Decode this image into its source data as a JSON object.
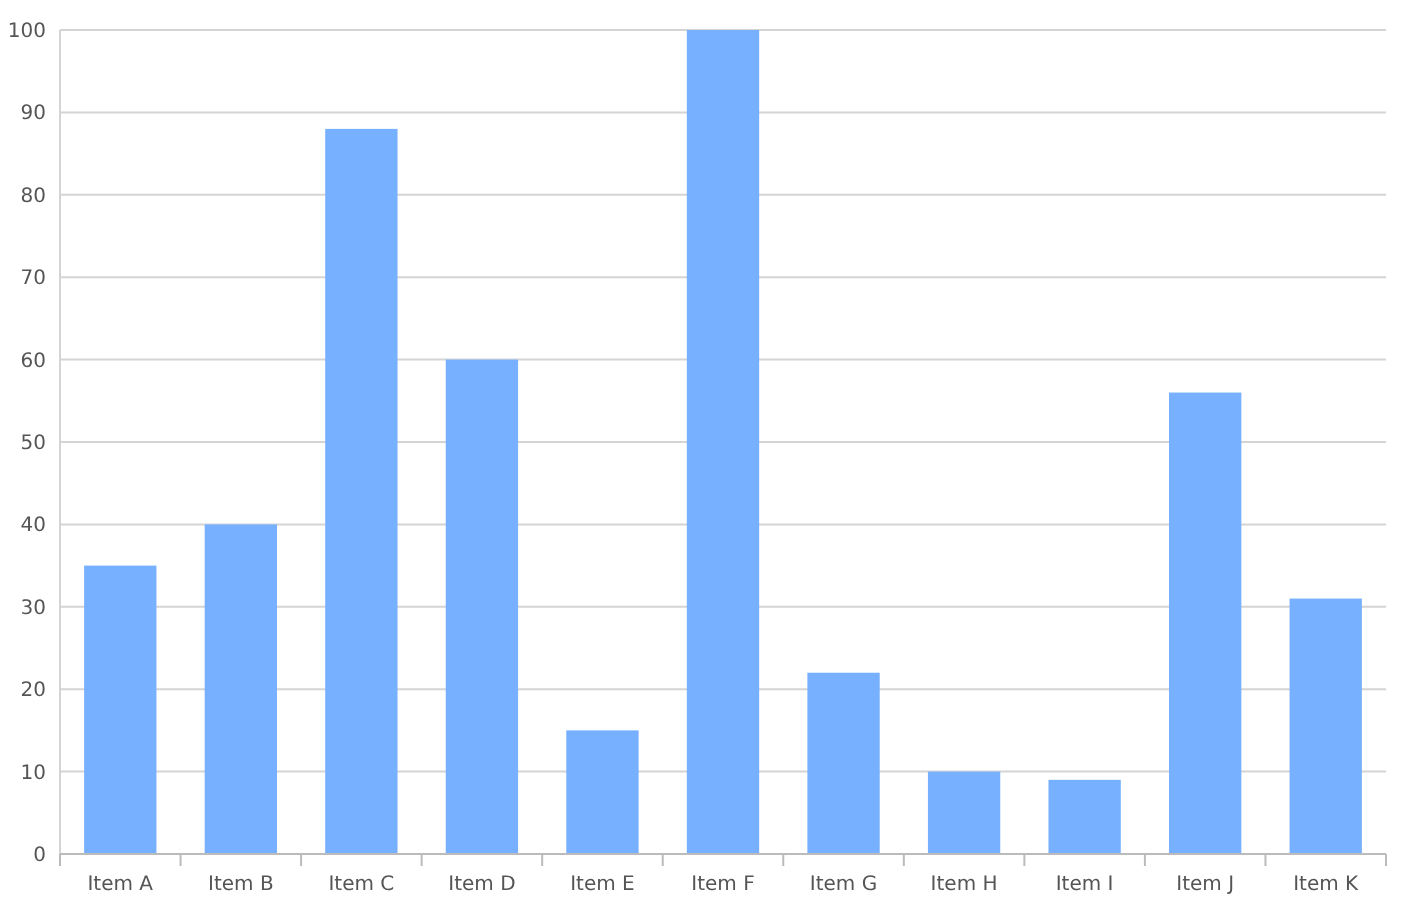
{
  "chart_data": {
    "type": "bar",
    "categories": [
      "Item A",
      "Item B",
      "Item C",
      "Item D",
      "Item E",
      "Item F",
      "Item G",
      "Item H",
      "Item I",
      "Item J",
      "Item K"
    ],
    "values": [
      35,
      40,
      88,
      60,
      15,
      100,
      22,
      10,
      9,
      56,
      31
    ],
    "color": "#77b0ff",
    "ylim": [
      0,
      100
    ],
    "yticks": [
      0,
      10,
      20,
      30,
      40,
      50,
      60,
      70,
      80,
      90,
      100
    ],
    "grid": "y"
  }
}
